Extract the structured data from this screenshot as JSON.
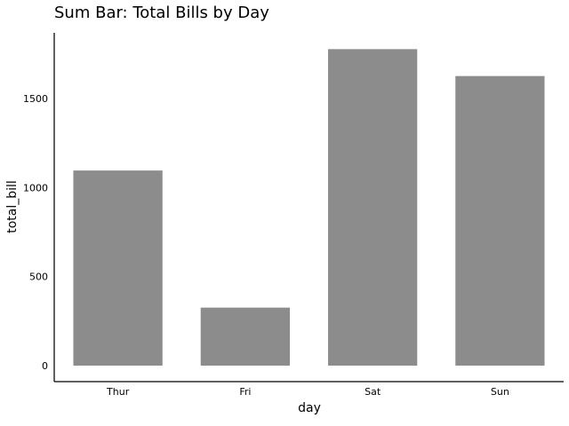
{
  "chart_data": {
    "type": "bar",
    "title": "Sum Bar: Total Bills by Day",
    "xlabel": "day",
    "ylabel": "total_bill",
    "categories": [
      "Thur",
      "Fri",
      "Sat",
      "Sun"
    ],
    "values": [
      1096.33,
      325.88,
      1778.4,
      1627.16
    ],
    "ylim": [
      -90,
      1870
    ],
    "yticks": [
      0,
      500,
      1000,
      1500
    ],
    "grid": false,
    "legend": "none",
    "bar_color": "#8c8c8c"
  }
}
